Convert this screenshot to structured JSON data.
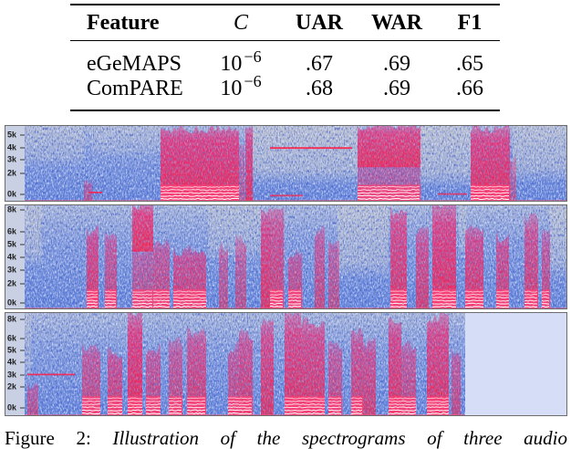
{
  "table": {
    "header": {
      "feature": "Feature",
      "c": "C",
      "uar": "UAR",
      "war": "WAR",
      "f1": "F1"
    },
    "rows": [
      {
        "feature": "eGeMAPS",
        "c_base": "10",
        "c_exp": "−6",
        "uar": ".67",
        "war": ".69",
        "f1": ".65"
      },
      {
        "feature": "ComPARE",
        "c_base": "10",
        "c_exp": "−6",
        "uar": ".68",
        "war": ".69",
        "f1": ".66"
      }
    ]
  },
  "spectrograms": [
    {
      "freq_labels": [
        "5k",
        "4k",
        "3k",
        "2k",
        "0k"
      ]
    },
    {
      "freq_labels": [
        "8k",
        "6k",
        "5k",
        "4k",
        "3k",
        "2k",
        "0k"
      ]
    },
    {
      "freq_labels": [
        "8k",
        "6k",
        "5k",
        "4k",
        "3k",
        "2k",
        "0k"
      ]
    }
  ],
  "colors": {
    "low_energy": "#5f80d8",
    "high_energy": "#ff1d45",
    "silence": "#c2c5cc",
    "harmonics": "#ffffff",
    "empty_region": "#d6ddf6"
  },
  "caption": {
    "label": "Figure 2:",
    "text": "Illustration of the spectrograms of three audio"
  }
}
